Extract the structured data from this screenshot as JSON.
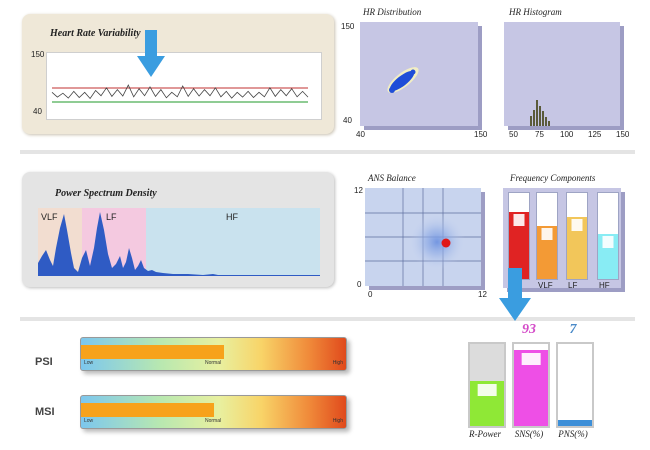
{
  "hrv": {
    "title": "Heart Rate Variability",
    "y_max_label": "150",
    "y_min_label": "40"
  },
  "hr_distribution": {
    "title": "HR Distribution",
    "y_max_label": "150",
    "y_min_label": "40",
    "x_min_label": "40",
    "x_max_label": "150"
  },
  "hr_histogram": {
    "title": "HR Histogram",
    "x_ticks": [
      "50",
      "75",
      "100",
      "125",
      "150"
    ]
  },
  "psd": {
    "title": "Power Spectrum Density",
    "band_labels": [
      "VLF",
      "LF",
      "HF"
    ]
  },
  "ans_balance": {
    "title": "ANS Balance",
    "y_max_label": "12",
    "y_min_label": "0",
    "x_min_label": "0",
    "x_max_label": "12"
  },
  "frequency_components": {
    "title": "Frequency Components",
    "bars": [
      {
        "label": "",
        "color": "#e02323",
        "fill": 0.78,
        "cap": 0.15
      },
      {
        "label": "VLF",
        "color": "#f39a35",
        "fill": 0.62,
        "cap": 0.15
      },
      {
        "label": "LF",
        "color": "#f2c65a",
        "fill": 0.72,
        "cap": 0.15
      },
      {
        "label": "HF",
        "color": "#88ecf4",
        "fill": 0.52,
        "cap": 0.25
      }
    ]
  },
  "levels": {
    "psi": {
      "label": "PSI",
      "fill": 0.54,
      "low": "Low",
      "normal": "Normal",
      "high": "High"
    },
    "msi": {
      "label": "MSI",
      "fill": 0.5,
      "low": "Low",
      "normal": "Normal",
      "high": "High"
    }
  },
  "summary_bars": [
    {
      "label": "R-Power",
      "value": "",
      "fill": 0.55,
      "color": "#8fe836",
      "value_color": "#333333"
    },
    {
      "label": "SNS(%)",
      "value": "93",
      "fill": 0.93,
      "color": "#ee4fe6",
      "value_color": "#d44bc8"
    },
    {
      "label": "PNS(%)",
      "value": "7",
      "fill": 0.07,
      "color": "#3d8fd8",
      "value_color": "#4a8ac8"
    }
  ],
  "colors": {
    "arrow": "#3a9de0",
    "psd_fill": "#2f5bc4",
    "vlf_band": "#f2ddd0",
    "lf_band": "#f4c9e0",
    "hf_band": "#c9e2ee",
    "scatter": "#1f4ed8"
  },
  "icons": {
    "arrow": "arrow-down-icon"
  }
}
